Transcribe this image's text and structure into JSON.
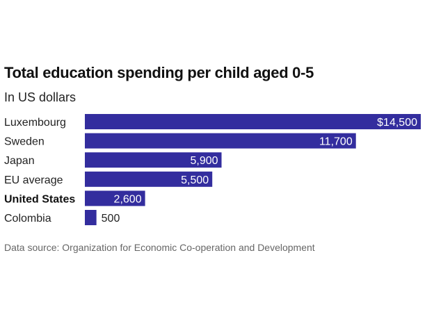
{
  "chart_data": {
    "type": "bar",
    "orientation": "horizontal",
    "title": "Total education spending per child aged 0-5",
    "subtitle": "In US dollars",
    "source": "Data source: Organization for Economic Co-operation and Development",
    "categories": [
      "Luxembourg",
      "Sweden",
      "Japan",
      "EU average",
      "United States",
      "Colombia"
    ],
    "values": [
      14500,
      11700,
      5900,
      5500,
      2600,
      500
    ],
    "value_labels": [
      "$14,500",
      "11,700",
      "5,900",
      "5,500",
      "2,600",
      "500"
    ],
    "highlighted": [
      "United States"
    ],
    "xlim": [
      0,
      14500
    ],
    "grid": false,
    "bar_color": "#332d9e",
    "label_inside_color": "#ffffff",
    "label_outside_color": "#222222"
  }
}
